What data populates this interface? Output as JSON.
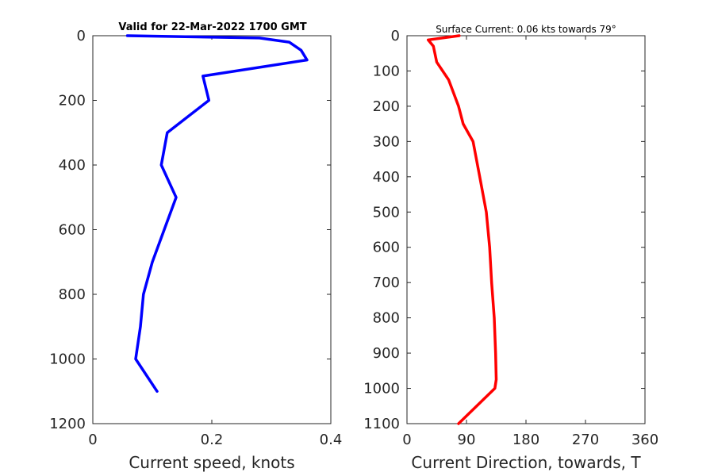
{
  "chart_data": [
    {
      "type": "line",
      "title": "Valid for 22-Mar-2022 1700 GMT",
      "xlabel": "Current speed, knots",
      "ylabel": "",
      "xlim": [
        0,
        0.4
      ],
      "ylim": [
        0,
        1200
      ],
      "y_reversed": true,
      "xticks": [
        0,
        0.2,
        0.4
      ],
      "xtick_labels": [
        "0",
        "0.2",
        "0.4"
      ],
      "yticks": [
        0,
        200,
        400,
        600,
        800,
        1000,
        1200
      ],
      "ytick_labels": [
        "0",
        "200",
        "400",
        "600",
        "800",
        "1000",
        "1200"
      ],
      "grid": false,
      "series": [
        {
          "color": "#0000ff",
          "x": [
            0.058,
            0.28,
            0.33,
            0.35,
            0.36,
            0.185,
            0.195,
            0.16,
            0.125,
            0.115,
            0.14,
            0.12,
            0.1,
            0.085,
            0.08,
            0.072,
            0.108
          ],
          "y": [
            0,
            7,
            20,
            45,
            75,
            125,
            200,
            250,
            300,
            400,
            500,
            600,
            700,
            800,
            900,
            1000,
            1100
          ]
        }
      ]
    },
    {
      "type": "line",
      "title": "Surface Current: 0.06 kts towards 79°",
      "xlabel": "Current Direction, towards, T",
      "ylabel": "",
      "xlim": [
        0,
        360
      ],
      "ylim": [
        0,
        1100
      ],
      "y_reversed": true,
      "xticks": [
        0,
        90,
        180,
        270,
        360
      ],
      "xtick_labels": [
        "0",
        "90",
        "180",
        "270",
        "360"
      ],
      "yticks": [
        0,
        100,
        200,
        300,
        400,
        500,
        600,
        700,
        800,
        900,
        1000,
        1100
      ],
      "ytick_labels": [
        "0",
        "100",
        "200",
        "300",
        "400",
        "500",
        "600",
        "700",
        "800",
        "900",
        "1000",
        "1100"
      ],
      "grid": false,
      "series": [
        {
          "color": "#ff0000",
          "x": [
            79,
            32,
            40,
            45,
            63,
            78,
            85,
            100,
            110,
            120,
            125,
            128,
            132,
            134,
            135,
            133,
            78
          ],
          "y": [
            0,
            12,
            30,
            75,
            125,
            200,
            250,
            300,
            400,
            500,
            600,
            700,
            800,
            900,
            975,
            1000,
            1100
          ]
        }
      ]
    }
  ]
}
